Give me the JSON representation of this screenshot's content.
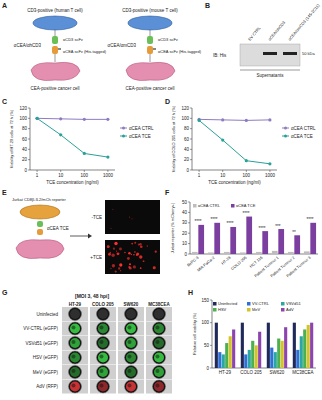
{
  "panel_labels": [
    "A",
    "B",
    "C",
    "D",
    "E",
    "F",
    "G",
    "H"
  ],
  "diagram_a": {
    "groups": [
      {
        "top": "CD3-positive (human T cell)",
        "tce": "αCEA/αhCD3",
        "arm_top": "αCD3 scFv",
        "arm_bottom": "αCEA scFv (His-tagged)",
        "bottom": "CEA-positive cancer cell"
      },
      {
        "top": "CD3-positive (mouse T cell)",
        "tce": "αCEA/αmCD3",
        "arm_top": "αCD3 scFv",
        "arm_bottom": "αCEA scFv (His-tagged)",
        "bottom": "CEA-positive cancer cell"
      }
    ]
  },
  "blot_b": {
    "lanes": [
      "EV CTRL",
      "αCEA/αhCD3",
      "αCEA/αmCD3 (145-2C11)"
    ],
    "bands": [
      false,
      true,
      true
    ],
    "antibody": "IB: His",
    "marker": "50 kDa",
    "sample": "Supernatants"
  },
  "diagram_e": {
    "cell": "Jurkat CD8β-IL2/mCh reporter",
    "tce": "αCEA TCE",
    "images": [
      "-TCE",
      "+TCE"
    ]
  },
  "micrograph_g": {
    "condition": "[MOI 3, 48 hpi]",
    "columns": [
      "HT-29",
      "COLO 205",
      "SW620",
      "MC38CEA"
    ],
    "rows": [
      {
        "label": "Uninfected",
        "color": "#444444"
      },
      {
        "label": "VV-CTRL (eGFP)",
        "color": "#3ddc4a"
      },
      {
        "label": "VSVd51 (eGFP)",
        "color": "#3ddc4a"
      },
      {
        "label": "HSV (eGFP)",
        "color": "#3ddc4a"
      },
      {
        "label": "MeV (eGFP)",
        "color": "#3ddc4a"
      },
      {
        "label": "AdV (RFP)",
        "color": "#e8393c"
      }
    ]
  },
  "chart_data": [
    {
      "type": "line",
      "x_label": "TCE concentration (ng/ml)",
      "y_label": "Viability of HT-29 cells at 72 h (%)",
      "x": [
        1,
        10,
        100,
        1000
      ],
      "log": "x",
      "xlim": [
        0.5,
        2000
      ],
      "xticks": [
        1,
        10,
        100,
        1000
      ],
      "ylim": [
        0,
        120
      ],
      "yticks": [
        0,
        20,
        40,
        60,
        80,
        100,
        120
      ],
      "legend": "right",
      "series": [
        {
          "name": "αCEA CTRL",
          "color": "#8e7cc3",
          "marker": "circle",
          "values": [
            100,
            99,
            98,
            98
          ]
        },
        {
          "name": "αCEA TCE",
          "color": "#2aa198",
          "marker": "circle",
          "values": [
            100,
            68,
            32,
            25
          ]
        }
      ]
    },
    {
      "type": "line",
      "x_label": "TCE concentration (ng/ml)",
      "y_label": "Viability of COLO 205 cells at 72 h (%)",
      "x": [
        1,
        10,
        100,
        1000
      ],
      "log": "x",
      "xlim": [
        0.5,
        2000
      ],
      "xticks": [
        1,
        10,
        100,
        1000
      ],
      "ylim": [
        0,
        120
      ],
      "yticks": [
        0,
        20,
        40,
        60,
        80,
        100,
        120
      ],
      "legend": "right",
      "series": [
        {
          "name": "αCEA CTRL",
          "color": "#8e7cc3",
          "marker": "circle",
          "values": [
            98,
            97,
            96,
            97
          ]
        },
        {
          "name": "αCEA TCE",
          "color": "#2aa198",
          "marker": "circle",
          "values": [
            96,
            58,
            18,
            12
          ]
        }
      ]
    },
    {
      "type": "bar",
      "y_label": "Jurkat reporter (% mCherry+)",
      "categories": [
        "BxPC-3",
        "MIA PaCa-2",
        "HT-29",
        "COLO 205",
        "HCT 116",
        "Patient Tumour 1",
        "Patient Tumour 2",
        "Patient Tumour 3"
      ],
      "ylim": [
        0,
        50
      ],
      "yticks": [
        0,
        10,
        20,
        30,
        40,
        50
      ],
      "legend": "top-left",
      "annotations": [
        "****",
        "****",
        "****",
        "****",
        "****",
        "***",
        "**",
        "****"
      ],
      "series": [
        {
          "name": "αCEA CTRL",
          "color": "#bdbdbd",
          "values": [
            2,
            1.5,
            2,
            1.5,
            2,
            3,
            2,
            2.5
          ]
        },
        {
          "name": "αCEA TCE",
          "color": "#7b3fa0",
          "values": [
            28,
            30,
            26,
            36,
            22,
            24,
            18,
            30
          ]
        }
      ]
    },
    {
      "type": "bar",
      "y_label": "Relative cell viability (%)",
      "categories": [
        "HT-29",
        "COLO 205",
        "SW620",
        "MC38CEA"
      ],
      "ylim": [
        0,
        150
      ],
      "yticks": [
        0,
        50,
        100,
        150
      ],
      "legend": "top",
      "series": [
        {
          "name": "Uninfected",
          "color": "#1f2a5a",
          "values": [
            100,
            100,
            100,
            100
          ]
        },
        {
          "name": "VV-CTRL",
          "color": "#2f6fd6",
          "values": [
            35,
            30,
            45,
            40
          ]
        },
        {
          "name": "VSVd51",
          "color": "#2aa6a6",
          "values": [
            30,
            40,
            35,
            70
          ]
        },
        {
          "name": "HSV",
          "color": "#4caf50",
          "values": [
            55,
            60,
            65,
            85
          ]
        },
        {
          "name": "MeV",
          "color": "#d4c42b",
          "values": [
            70,
            50,
            60,
            95
          ]
        },
        {
          "name": "AdV",
          "color": "#8e44ad",
          "values": [
            85,
            80,
            90,
            100
          ]
        }
      ]
    }
  ]
}
